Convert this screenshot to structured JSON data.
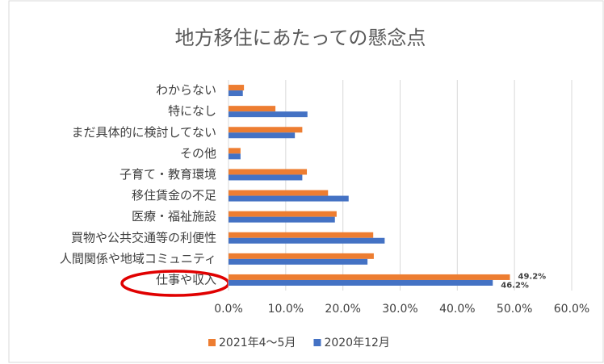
{
  "chart_data": {
    "type": "bar",
    "orientation": "horizontal",
    "title": "地方移住にあたっての懸念点",
    "categories": [
      "わからない",
      "特になし",
      "まだ具体的に検討してない",
      "その他",
      "子育て・教育環境",
      "移住賃金の不足",
      "医療・福祉施設",
      "買物や公共交通等の利便性",
      "人間関係や地域コミュニティ",
      "仕事や収入"
    ],
    "series": [
      {
        "name": "2021年4～5月",
        "color": "#ed7d31",
        "values": [
          2.7,
          8.2,
          12.9,
          2.1,
          13.7,
          17.4,
          18.9,
          25.3,
          25.4,
          49.2
        ],
        "value_labels": [
          null,
          null,
          null,
          null,
          null,
          null,
          null,
          null,
          null,
          "49.2%"
        ]
      },
      {
        "name": "2020年12月",
        "color": "#4472c4",
        "values": [
          2.5,
          13.8,
          11.6,
          2.1,
          12.9,
          21.0,
          18.6,
          27.3,
          24.3,
          46.2
        ],
        "value_labels": [
          null,
          null,
          null,
          null,
          null,
          null,
          null,
          null,
          null,
          "46.2%"
        ]
      }
    ],
    "xlim": [
      0,
      60
    ],
    "xticks": [
      {
        "value": 0,
        "label": "0.0%"
      },
      {
        "value": 10,
        "label": "10.0%"
      },
      {
        "value": 20,
        "label": "20.0%"
      },
      {
        "value": 30,
        "label": "30.0%"
      },
      {
        "value": 40,
        "label": "40.0%"
      },
      {
        "value": 50,
        "label": "50.0%"
      },
      {
        "value": 60,
        "label": "60.0%"
      }
    ],
    "grid": true,
    "legend": "bottom"
  }
}
